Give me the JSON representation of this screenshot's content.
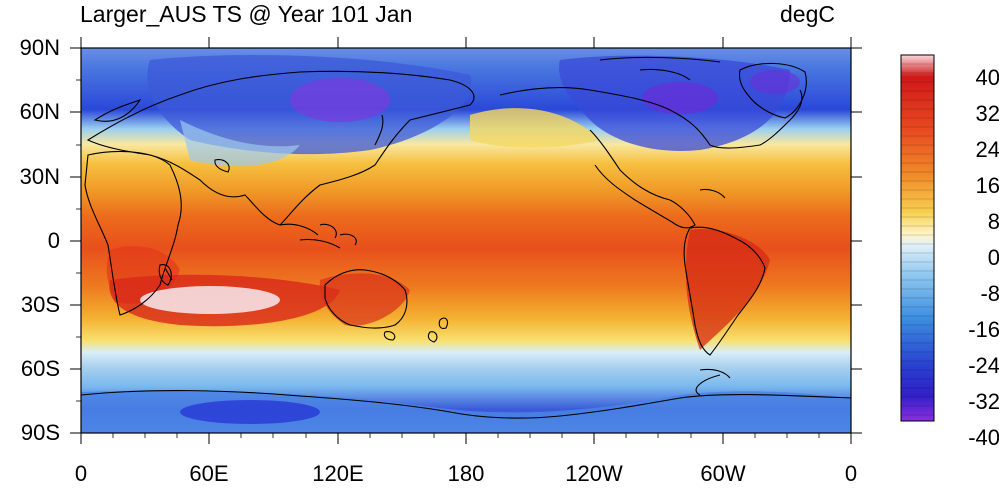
{
  "title_left": "Larger_AUS TS @ Year 101 Jan",
  "title_right": "degC",
  "lat_labels": [
    "90N",
    "60N",
    "30N",
    "0",
    "30S",
    "60S",
    "90S"
  ],
  "lon_labels": [
    "0",
    "60E",
    "120E",
    "180",
    "120W",
    "60W",
    "0"
  ],
  "colorbar_labels": [
    "40",
    "32",
    "24",
    "16",
    "8",
    "0",
    "-8",
    "-16",
    "-24",
    "-32",
    "-40"
  ],
  "colors": {
    "deep_cold": "#8a2be2",
    "cold": "#2a38d8",
    "cool": "#4aa0e8",
    "zero": "#f2f2e6",
    "warm": "#f4c040",
    "hot": "#e83a20",
    "extreme": "#f4d8dc"
  }
}
